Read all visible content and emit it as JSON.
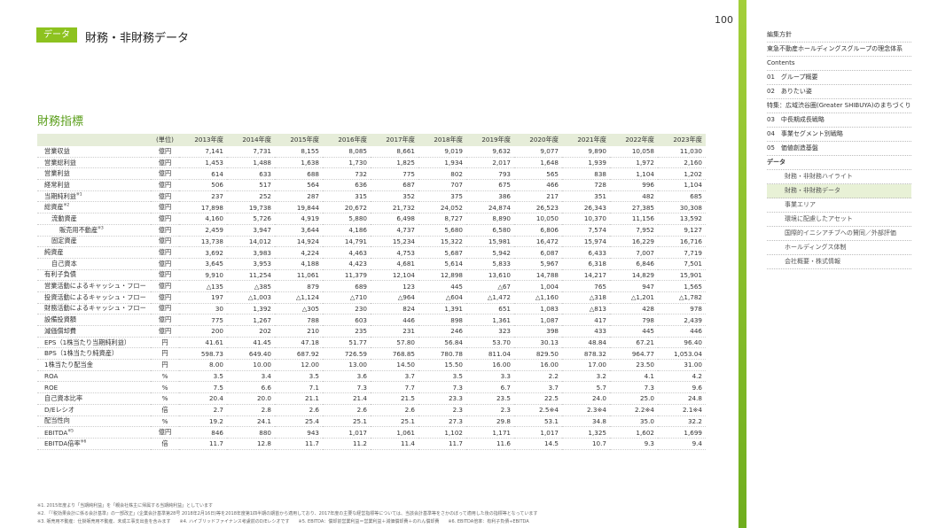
{
  "header": {
    "badge": "データ",
    "title": "財務・非財務データ",
    "page_number": "100"
  },
  "section_title": "財務指標",
  "table": {
    "unit_header": "(単位)",
    "years": [
      "2013年度",
      "2014年度",
      "2015年度",
      "2016年度",
      "2017年度",
      "2018年度",
      "2019年度",
      "2020年度",
      "2021年度",
      "2022年度",
      "2023年度"
    ],
    "rows": [
      {
        "label": "営業収益",
        "note": "",
        "indent": 0,
        "unit": "億円",
        "values": [
          "7,141",
          "7,731",
          "8,155",
          "8,085",
          "8,661",
          "9,019",
          "9,632",
          "9,077",
          "9,890",
          "10,058",
          "11,030"
        ]
      },
      {
        "label": "営業総利益",
        "note": "",
        "indent": 0,
        "unit": "億円",
        "values": [
          "1,453",
          "1,488",
          "1,638",
          "1,730",
          "1,825",
          "1,934",
          "2,017",
          "1,648",
          "1,939",
          "1,972",
          "2,160"
        ]
      },
      {
        "label": "営業利益",
        "note": "",
        "indent": 0,
        "unit": "億円",
        "values": [
          "614",
          "633",
          "688",
          "732",
          "775",
          "802",
          "793",
          "565",
          "838",
          "1,104",
          "1,202"
        ]
      },
      {
        "label": "経常利益",
        "note": "",
        "indent": 0,
        "unit": "億円",
        "values": [
          "506",
          "517",
          "564",
          "636",
          "687",
          "707",
          "675",
          "466",
          "728",
          "996",
          "1,104"
        ]
      },
      {
        "label": "当期純利益",
        "note": "※1",
        "indent": 0,
        "unit": "億円",
        "values": [
          "237",
          "252",
          "287",
          "315",
          "352",
          "375",
          "386",
          "217",
          "351",
          "482",
          "685"
        ]
      },
      {
        "label": "総資産",
        "note": "※2",
        "indent": 0,
        "unit": "億円",
        "values": [
          "17,898",
          "19,738",
          "19,844",
          "20,672",
          "21,732",
          "24,052",
          "24,874",
          "26,523",
          "26,343",
          "27,385",
          "30,308"
        ]
      },
      {
        "label": "流動資産",
        "note": "",
        "indent": 1,
        "unit": "億円",
        "values": [
          "4,160",
          "5,726",
          "4,919",
          "5,880",
          "6,498",
          "8,727",
          "8,890",
          "10,050",
          "10,370",
          "11,156",
          "13,592"
        ]
      },
      {
        "label": "販売用不動産",
        "note": "※3",
        "indent": 2,
        "unit": "億円",
        "values": [
          "2,459",
          "3,947",
          "3,644",
          "4,186",
          "4,737",
          "5,680",
          "6,580",
          "6,806",
          "7,574",
          "7,952",
          "9,127"
        ]
      },
      {
        "label": "固定資産",
        "note": "",
        "indent": 1,
        "unit": "億円",
        "values": [
          "13,738",
          "14,012",
          "14,924",
          "14,791",
          "15,234",
          "15,322",
          "15,981",
          "16,472",
          "15,974",
          "16,229",
          "16,716"
        ]
      },
      {
        "label": "純資産",
        "note": "",
        "indent": 0,
        "unit": "億円",
        "values": [
          "3,692",
          "3,983",
          "4,224",
          "4,463",
          "4,753",
          "5,687",
          "5,942",
          "6,087",
          "6,433",
          "7,007",
          "7,719"
        ]
      },
      {
        "label": "自己資本",
        "note": "",
        "indent": 1,
        "unit": "億円",
        "values": [
          "3,645",
          "3,953",
          "4,188",
          "4,423",
          "4,681",
          "5,614",
          "5,833",
          "5,967",
          "6,318",
          "6,846",
          "7,501"
        ]
      },
      {
        "label": "有利子負債",
        "note": "",
        "indent": 0,
        "unit": "億円",
        "values": [
          "9,910",
          "11,254",
          "11,061",
          "11,379",
          "12,104",
          "12,898",
          "13,610",
          "14,788",
          "14,217",
          "14,829",
          "15,901"
        ]
      },
      {
        "label": "営業活動によるキャッシュ・フロー",
        "note": "",
        "indent": 0,
        "unit": "億円",
        "values": [
          "△135",
          "△385",
          "879",
          "689",
          "123",
          "445",
          "△67",
          "1,004",
          "765",
          "947",
          "1,565"
        ]
      },
      {
        "label": "投資活動によるキャッシュ・フロー",
        "note": "",
        "indent": 0,
        "unit": "億円",
        "values": [
          "197",
          "△1,003",
          "△1,124",
          "△710",
          "△964",
          "△604",
          "△1,472",
          "△1,160",
          "△318",
          "△1,201",
          "△1,782"
        ]
      },
      {
        "label": "財務活動によるキャッシュ・フロー",
        "note": "",
        "indent": 0,
        "unit": "億円",
        "values": [
          "30",
          "1,392",
          "△305",
          "230",
          "824",
          "1,391",
          "651",
          "1,083",
          "△813",
          "428",
          "978"
        ]
      },
      {
        "label": "設備投資額",
        "note": "",
        "indent": 0,
        "unit": "億円",
        "values": [
          "775",
          "1,267",
          "788",
          "603",
          "446",
          "898",
          "1,361",
          "1,087",
          "417",
          "798",
          "2,439"
        ]
      },
      {
        "label": "減価償却費",
        "note": "",
        "indent": 0,
        "unit": "億円",
        "values": [
          "200",
          "202",
          "210",
          "235",
          "231",
          "246",
          "323",
          "398",
          "433",
          "445",
          "446"
        ]
      },
      {
        "label": "EPS（1株当たり当期純利益）",
        "note": "",
        "indent": 0,
        "unit": "円",
        "values": [
          "41.61",
          "41.45",
          "47.18",
          "51.77",
          "57.80",
          "56.84",
          "53.70",
          "30.13",
          "48.84",
          "67.21",
          "96.40"
        ]
      },
      {
        "label": "BPS（1株当たり純資産）",
        "note": "",
        "indent": 0,
        "unit": "円",
        "values": [
          "598.73",
          "649.40",
          "687.92",
          "726.59",
          "768.85",
          "780.78",
          "811.04",
          "829.50",
          "878.32",
          "964.77",
          "1,053.04"
        ]
      },
      {
        "label": "1株当たり配当金",
        "note": "",
        "indent": 0,
        "unit": "円",
        "values": [
          "8.00",
          "10.00",
          "12.00",
          "13.00",
          "14.50",
          "15.50",
          "16.00",
          "16.00",
          "17.00",
          "23.50",
          "31.00"
        ]
      },
      {
        "label": "ROA",
        "note": "",
        "indent": 0,
        "unit": "%",
        "values": [
          "3.5",
          "3.4",
          "3.5",
          "3.6",
          "3.7",
          "3.5",
          "3.3",
          "2.2",
          "3.2",
          "4.1",
          "4.2"
        ]
      },
      {
        "label": "ROE",
        "note": "",
        "indent": 0,
        "unit": "%",
        "values": [
          "7.5",
          "6.6",
          "7.1",
          "7.3",
          "7.7",
          "7.3",
          "6.7",
          "3.7",
          "5.7",
          "7.3",
          "9.6"
        ]
      },
      {
        "label": "自己資本比率",
        "note": "",
        "indent": 0,
        "unit": "%",
        "values": [
          "20.4",
          "20.0",
          "21.1",
          "21.4",
          "21.5",
          "23.3",
          "23.5",
          "22.5",
          "24.0",
          "25.0",
          "24.8"
        ]
      },
      {
        "label": "D/Eレシオ",
        "note": "",
        "indent": 0,
        "unit": "倍",
        "values": [
          "2.7",
          "2.8",
          "2.6",
          "2.6",
          "2.6",
          "2.3",
          "2.3",
          "2.5※4",
          "2.3※4",
          "2.2※4",
          "2.1※4"
        ]
      },
      {
        "label": "配当性向",
        "note": "",
        "indent": 0,
        "unit": "%",
        "values": [
          "19.2",
          "24.1",
          "25.4",
          "25.1",
          "25.1",
          "27.3",
          "29.8",
          "53.1",
          "34.8",
          "35.0",
          "32.2"
        ]
      },
      {
        "label": "EBITDA",
        "note": "※5",
        "indent": 0,
        "unit": "億円",
        "values": [
          "846",
          "880",
          "943",
          "1,017",
          "1,061",
          "1,102",
          "1,171",
          "1,017",
          "1,325",
          "1,602",
          "1,699"
        ]
      },
      {
        "label": "EBITDA倍率",
        "note": "※6",
        "indent": 0,
        "unit": "倍",
        "values": [
          "11.7",
          "12.8",
          "11.7",
          "11.2",
          "11.4",
          "11.7",
          "11.6",
          "14.5",
          "10.7",
          "9.3",
          "9.4"
        ]
      }
    ]
  },
  "notes": [
    "※1. 2015年度より「当期純利益」を「親会社株主に帰属する当期純利益」としています",
    "※2. 「『税効果会計に係る会計基準』の一部改正」(企業会計基準第28号 2018年2月16日)等を2018年度第1四半期の期首から適用しており、2017年度の主要な経営指標等については、当該会計基準等をさかのぼって適用した後の指標等となっています",
    "※3. 販売用不動産：仕掛販売用不動産、未成工事支出金を含みます　　※4. ハイブリッドファイナンス考慮前のD/Eレシオです　　※5. EBITDA：償却前営業利益＝営業利益＋減価償却費＋のれん償却費　　※6. EBITDA倍率：有利子負債÷EBITDA"
  ],
  "sidebar": {
    "items": [
      {
        "label": "編集方針",
        "type": "item"
      },
      {
        "label": "東急不動産ホールディングスグループの理念体系",
        "type": "item"
      },
      {
        "label": "Contents",
        "type": "item"
      },
      {
        "label": "01　グループ概要",
        "type": "item"
      },
      {
        "label": "02　ありたい姿",
        "type": "item"
      },
      {
        "label": "特集：広域渋谷圏(Greater SHIBUYA)のまちづくり",
        "type": "item"
      },
      {
        "label": "03　中長期成長戦略",
        "type": "item"
      },
      {
        "label": "04　事業セグメント別戦略",
        "type": "item"
      },
      {
        "label": "05　価値創造基盤",
        "type": "item"
      },
      {
        "label": "データ",
        "type": "head"
      },
      {
        "label": "財務・非財務ハイライト",
        "type": "sub"
      },
      {
        "label": "財務・非財務データ",
        "type": "sub-active"
      },
      {
        "label": "事業エリア",
        "type": "sub"
      },
      {
        "label": "環境に配慮したアセット",
        "type": "sub"
      },
      {
        "label": "国際的イニシアチブへの賛同／外部評価",
        "type": "sub"
      },
      {
        "label": "ホールディングス体制",
        "type": "sub"
      },
      {
        "label": "会社概要・株式情報",
        "type": "sub"
      }
    ]
  },
  "colors": {
    "accent": "#8dc21f",
    "header_row": "#e6edd9",
    "title_green": "#5a9e1a"
  }
}
